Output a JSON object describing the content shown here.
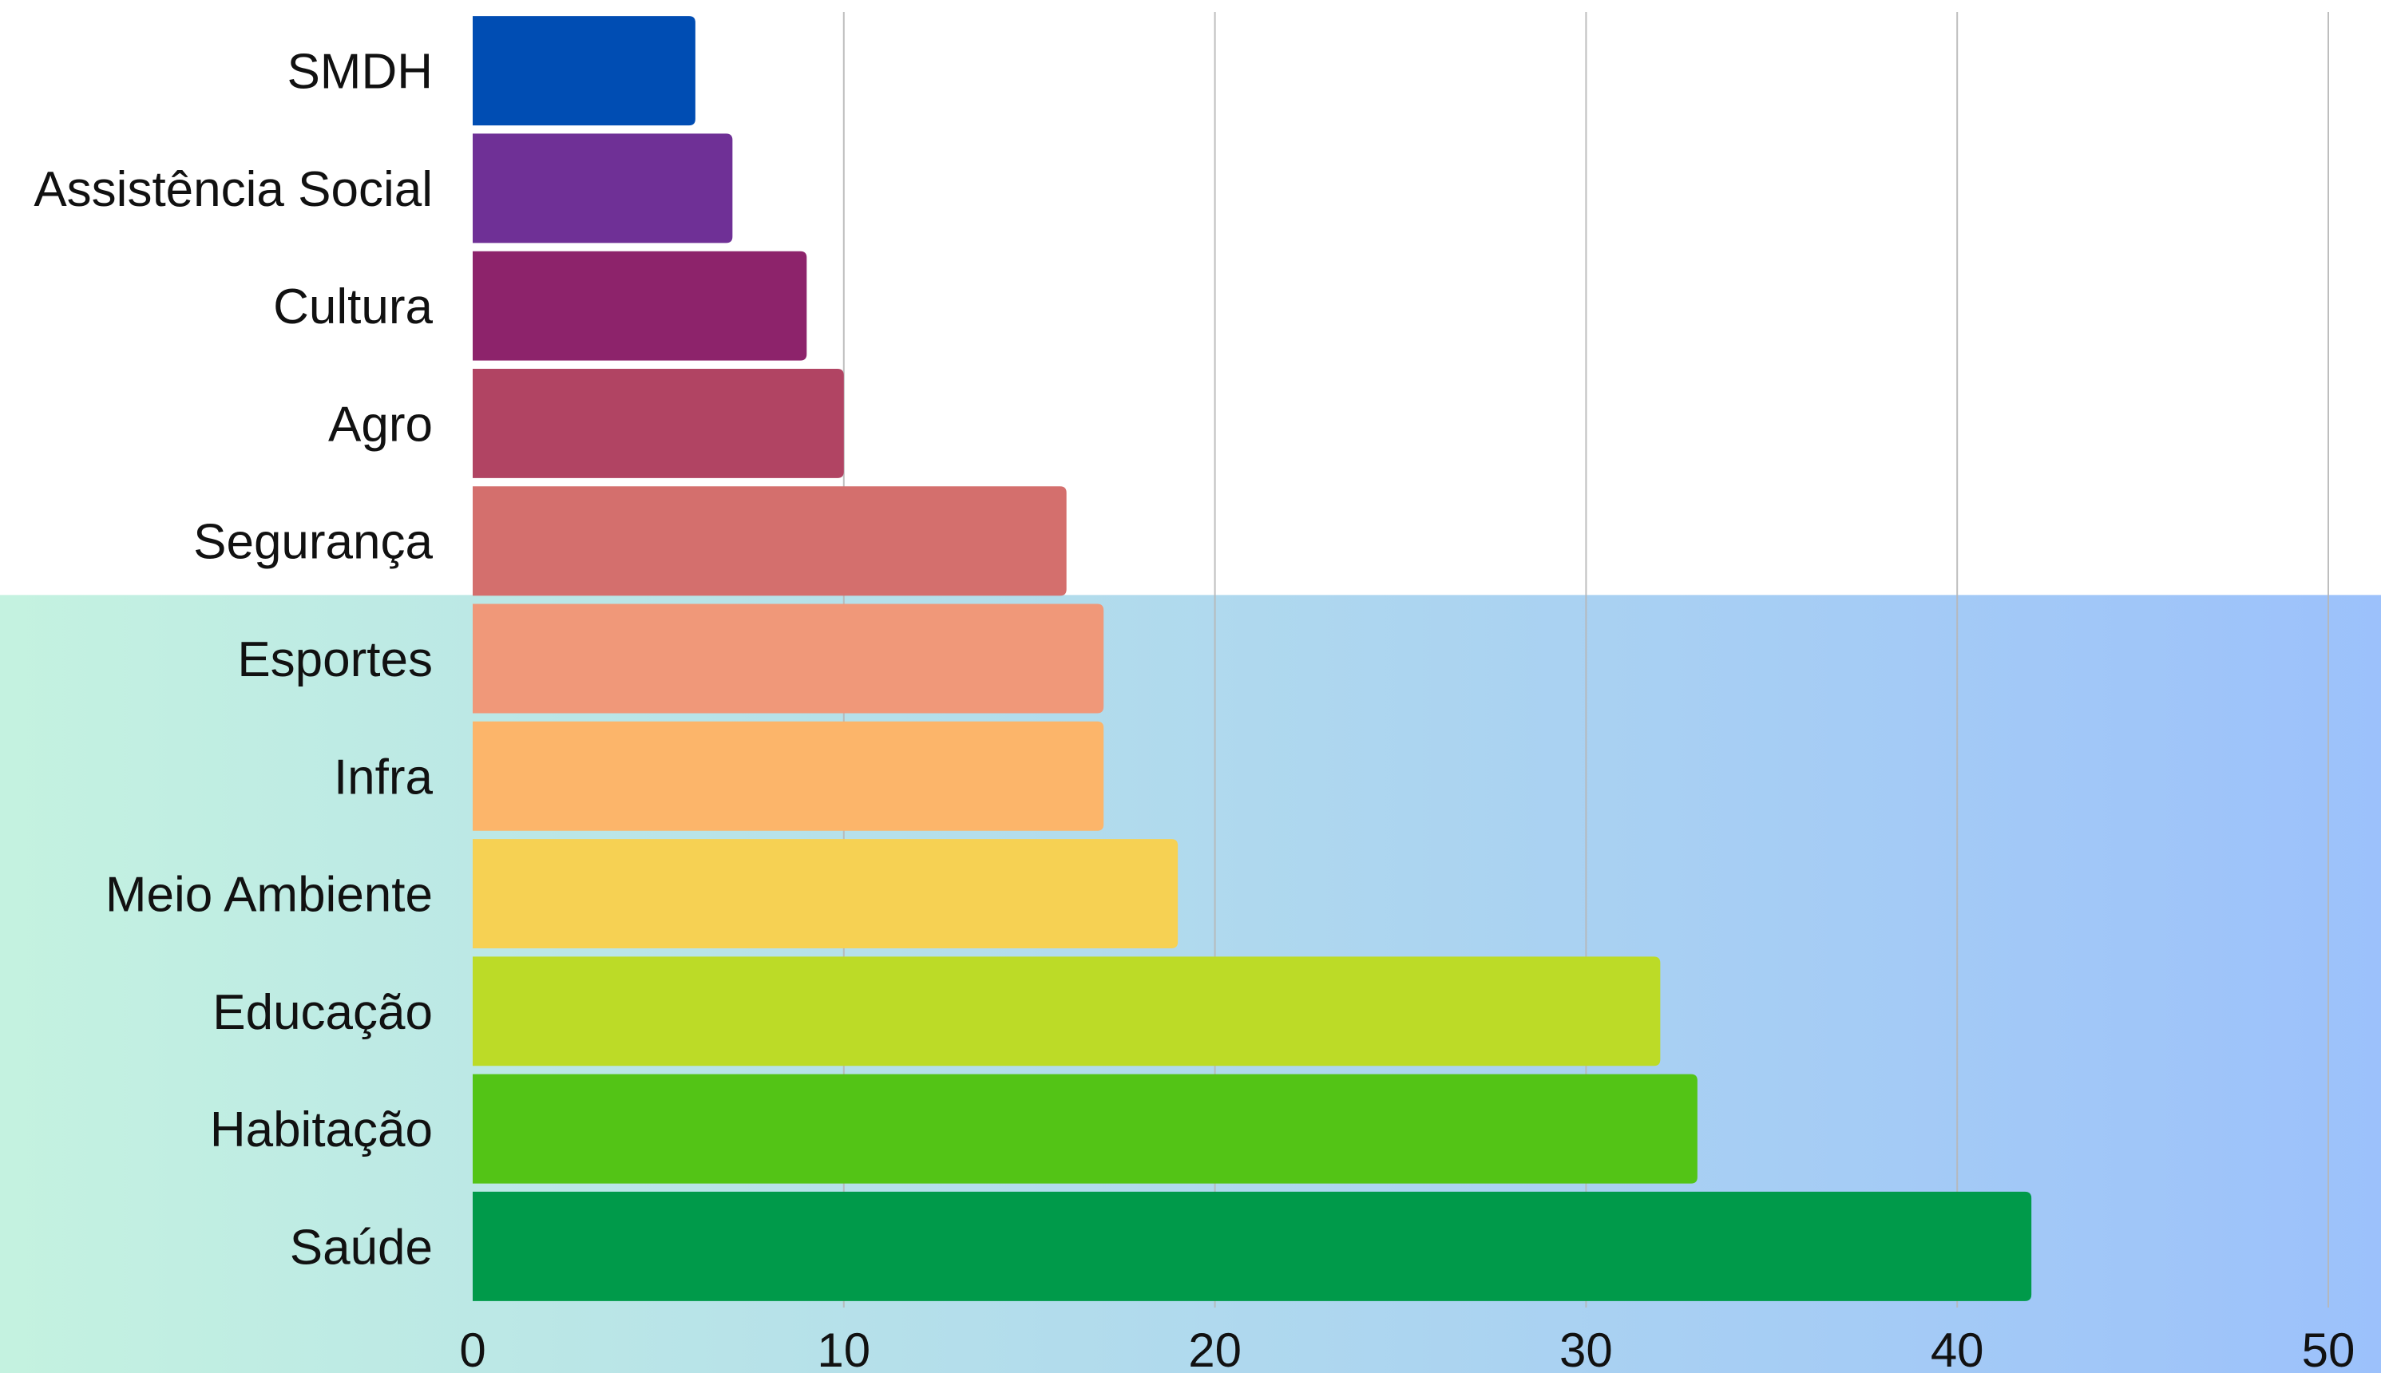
{
  "chart_data": {
    "type": "bar",
    "orientation": "horizontal",
    "title": "",
    "xlabel": "",
    "ylabel": "",
    "categories": [
      "SMDH",
      "Assistência Social",
      "Cultura",
      "Agro",
      "Segurança",
      "Esportes",
      "Infra",
      "Meio Ambiente",
      "Educação",
      "Habitação",
      "Saúde"
    ],
    "values": [
      6,
      7,
      9,
      10,
      16,
      17,
      17,
      19,
      32,
      33,
      42
    ],
    "colors": [
      "#004db3",
      "#6f3096",
      "#8d236b",
      "#b14463",
      "#d46f6d",
      "#f09879",
      "#fcb56a",
      "#f6d153",
      "#bcdb27",
      "#53c416",
      "#009a4a"
    ],
    "xlim": [
      0,
      50
    ],
    "x_ticks": [
      "0",
      "10",
      "20",
      "30",
      "40",
      "50"
    ],
    "grid": true,
    "legend": "none",
    "background_band": {
      "from_category": "Esportes",
      "gradient_start": "#c4f2e0",
      "gradient_end": "#9cc1fb"
    },
    "gridline_color": "#b7b7b7"
  }
}
